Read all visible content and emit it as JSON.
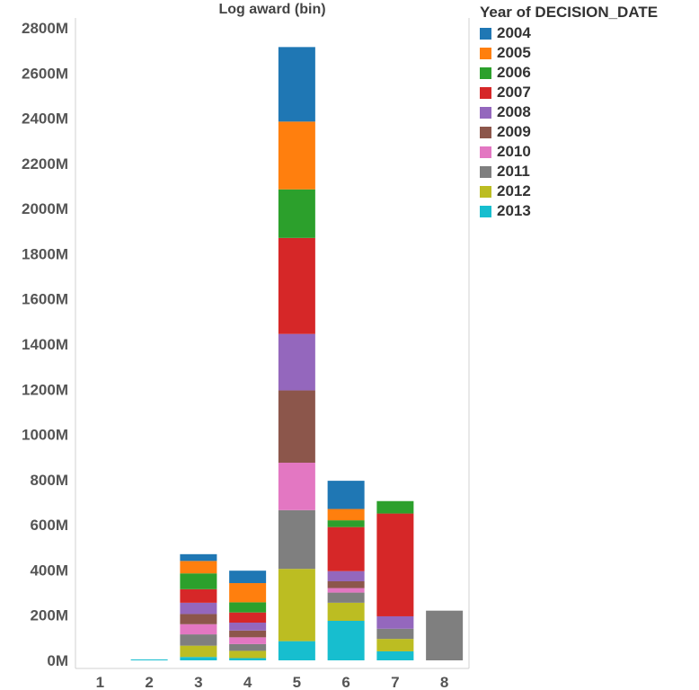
{
  "chart_data": {
    "type": "bar",
    "stacked": true,
    "title": "",
    "xlabel": "Log award (bin)",
    "ylabel": "",
    "ylim": [
      0,
      2800
    ],
    "y_unit_suffix": "M",
    "y_ticks": [
      0,
      200,
      400,
      600,
      800,
      1000,
      1200,
      1400,
      1600,
      1800,
      2000,
      2200,
      2400,
      2600,
      2800
    ],
    "y_tick_labels": [
      "0M",
      "200M",
      "400M",
      "600M",
      "800M",
      "1000M",
      "1200M",
      "1400M",
      "1600M",
      "1800M",
      "2000M",
      "2200M",
      "2400M",
      "2600M",
      "2800M"
    ],
    "categories": [
      "1",
      "2",
      "3",
      "4",
      "5",
      "6",
      "7",
      "8"
    ],
    "grid": false,
    "legend_title": "Year of DECISION_DATE",
    "legend_position": "right",
    "series": [
      {
        "name": "2013",
        "color": "#17becf",
        "values": [
          0,
          4,
          15,
          10,
          85,
          175,
          40,
          0
        ]
      },
      {
        "name": "2012",
        "color": "#bcbd22",
        "values": [
          0,
          0,
          50,
          32,
          320,
          80,
          55,
          0
        ]
      },
      {
        "name": "2011",
        "color": "#7f7f7f",
        "values": [
          0,
          0,
          50,
          30,
          260,
          45,
          45,
          220
        ]
      },
      {
        "name": "2010",
        "color": "#e377c2",
        "values": [
          0,
          0,
          45,
          30,
          210,
          20,
          0,
          0
        ]
      },
      {
        "name": "2009",
        "color": "#8c564b",
        "values": [
          0,
          0,
          45,
          30,
          320,
          30,
          0,
          0
        ]
      },
      {
        "name": "2008",
        "color": "#9467bd",
        "values": [
          0,
          0,
          50,
          35,
          250,
          45,
          55,
          0
        ]
      },
      {
        "name": "2007",
        "color": "#d62728",
        "values": [
          0,
          0,
          60,
          45,
          425,
          195,
          455,
          0
        ]
      },
      {
        "name": "2006",
        "color": "#2ca02c",
        "values": [
          0,
          0,
          70,
          45,
          215,
          30,
          55,
          0
        ]
      },
      {
        "name": "2005",
        "color": "#ff7f0e",
        "values": [
          0,
          0,
          55,
          85,
          300,
          50,
          0,
          0
        ]
      },
      {
        "name": "2004",
        "color": "#1f77b4",
        "values": [
          0,
          0,
          30,
          55,
          330,
          125,
          0,
          0
        ]
      }
    ]
  },
  "legend": {
    "title": "Year of DECISION_DATE",
    "items": [
      {
        "label": "2004",
        "color": "#1f77b4"
      },
      {
        "label": "2005",
        "color": "#ff7f0e"
      },
      {
        "label": "2006",
        "color": "#2ca02c"
      },
      {
        "label": "2007",
        "color": "#d62728"
      },
      {
        "label": "2008",
        "color": "#9467bd"
      },
      {
        "label": "2009",
        "color": "#8c564b"
      },
      {
        "label": "2010",
        "color": "#e377c2"
      },
      {
        "label": "2011",
        "color": "#7f7f7f"
      },
      {
        "label": "2012",
        "color": "#bcbd22"
      },
      {
        "label": "2013",
        "color": "#17becf"
      }
    ]
  }
}
